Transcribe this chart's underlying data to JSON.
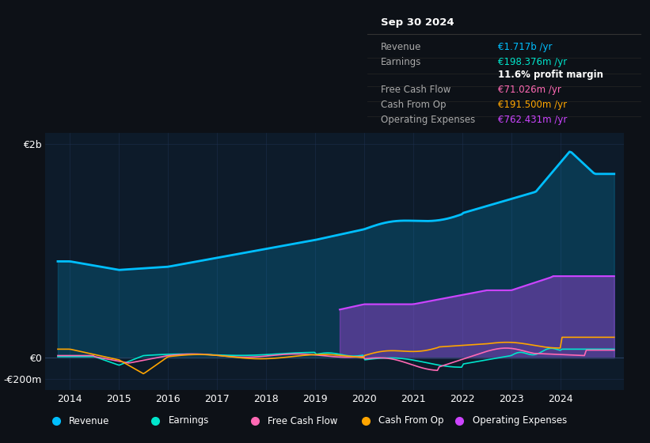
{
  "bg_color": "#0d1117",
  "plot_bg_color": "#0d1b2a",
  "grid_color": "#1e3050",
  "title": "Sep 30 2024",
  "info_box": {
    "bg": "#0a0a0a",
    "border": "#333333",
    "rows": [
      {
        "label": "Revenue",
        "value": "€1.717b /yr",
        "value_color": "#00bfff"
      },
      {
        "label": "Earnings",
        "value": "€198.376m /yr",
        "value_color": "#00e5cc"
      },
      {
        "label": "",
        "value": "11.6% profit margin",
        "value_color": "#ffffff"
      },
      {
        "label": "Free Cash Flow",
        "value": "€71.026m /yr",
        "value_color": "#ff69b4"
      },
      {
        "label": "Cash From Op",
        "value": "€191.500m /yr",
        "value_color": "#ffa500"
      },
      {
        "label": "Operating Expenses",
        "value": "€762.431m /yr",
        "value_color": "#cc44ff"
      }
    ]
  },
  "ylim": [
    -300000000,
    2100000000
  ],
  "yticks": [
    -200000000,
    0,
    2000000000
  ],
  "ytick_labels": [
    "-€200m",
    "€0",
    "€2b"
  ],
  "xlim_start": 2013.5,
  "xlim_end": 2025.3,
  "xtick_years": [
    2014,
    2015,
    2016,
    2017,
    2018,
    2019,
    2020,
    2021,
    2022,
    2023,
    2024
  ],
  "colors": {
    "revenue": "#00bfff",
    "earnings": "#00e5cc",
    "free_cash_flow": "#ff69b4",
    "cash_from_op": "#ffa500",
    "operating_expenses": "#cc44ff"
  },
  "legend_items": [
    {
      "label": "Revenue",
      "color": "#00bfff"
    },
    {
      "label": "Earnings",
      "color": "#00e5cc"
    },
    {
      "label": "Free Cash Flow",
      "color": "#ff69b4"
    },
    {
      "label": "Cash From Op",
      "color": "#ffa500"
    },
    {
      "label": "Operating Expenses",
      "color": "#cc44ff"
    }
  ]
}
